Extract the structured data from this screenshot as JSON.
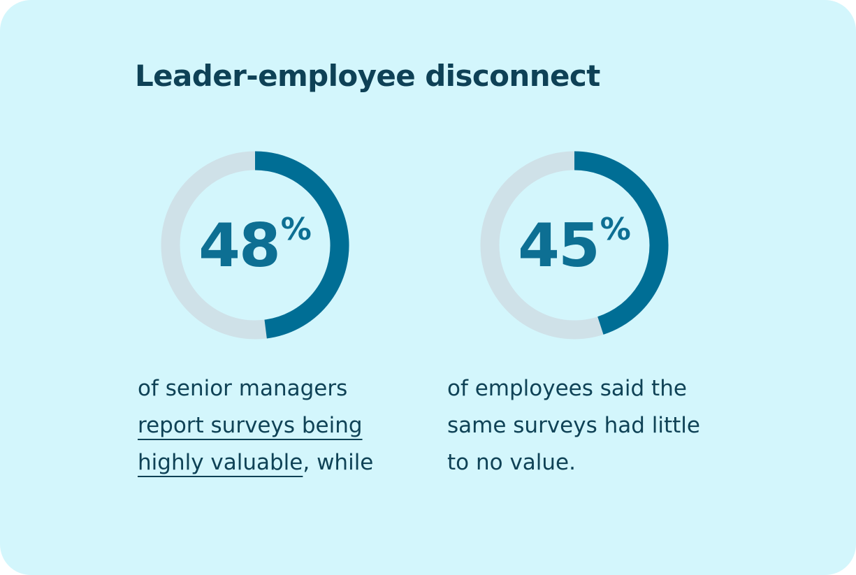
{
  "title": "Leader-employee disconnect",
  "colors": {
    "background": "#d3f6fc",
    "track": "#cfe1e8",
    "arc": "#006e95",
    "percent_text": "#0d6f93",
    "title_text": "#0e4156",
    "body_text": "#0f4256"
  },
  "chart_data": [
    {
      "type": "pie",
      "title": "",
      "values": [
        48,
        52
      ],
      "percent_label": "48",
      "percent_sign": "%",
      "description": {
        "line1": "of senior managers",
        "line2_link": "report surveys being ",
        "line3_link": "highly valuable",
        "line3_tail": ", while"
      }
    },
    {
      "type": "pie",
      "title": "",
      "values": [
        45,
        55
      ],
      "percent_label": "45",
      "percent_sign": "%",
      "description": {
        "line1": "of employees said the",
        "line2": "same surveys had little",
        "line3": "to no value."
      }
    }
  ]
}
